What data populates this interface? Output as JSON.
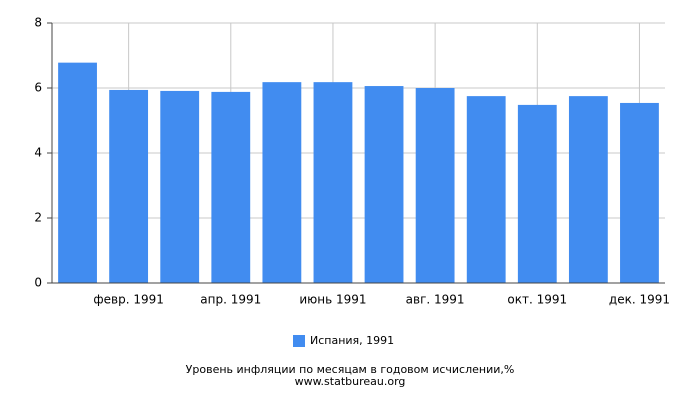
{
  "chart_data": {
    "type": "bar",
    "categories": [
      null,
      "февр. 1991",
      null,
      "апр. 1991",
      null,
      "июнь 1991",
      null,
      "авг. 1991",
      null,
      "окт. 1991",
      null,
      "дек. 1991"
    ],
    "series": [
      {
        "name": "Испания, 1991",
        "color": "#418cf0",
        "values": [
          6.78,
          5.94,
          5.91,
          5.88,
          6.18,
          6.18,
          6.06,
          6.0,
          5.75,
          5.48,
          5.75,
          5.54
        ]
      }
    ],
    "ylim": [
      0,
      8
    ],
    "yticks": [
      0,
      2,
      4,
      6,
      8
    ],
    "grid": true,
    "title": "Уровень инфляции по месяцам в годовом исчислении,%",
    "subtitle": "www.statbureau.org"
  }
}
